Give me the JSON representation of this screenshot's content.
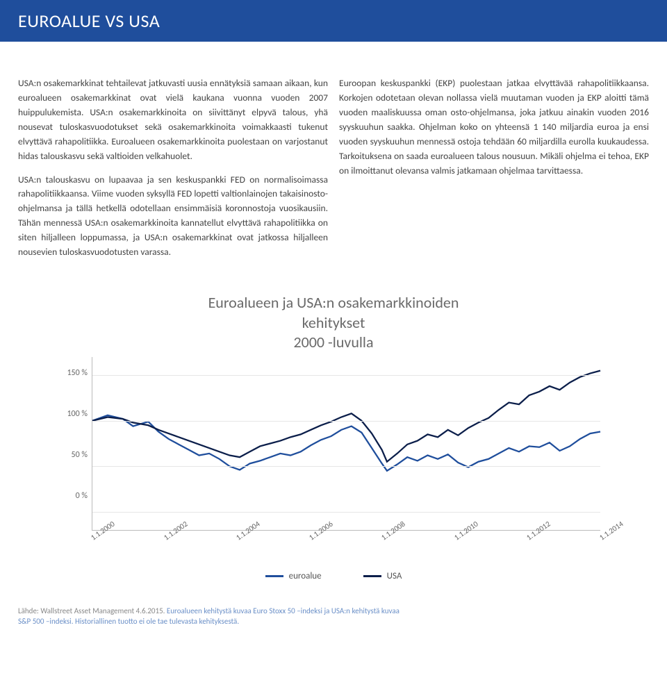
{
  "banner": {
    "title": "EUROALUE VS USA"
  },
  "col_left": {
    "p1": "USA:n osakemarkkinat tehtailevat jatkuvasti uusia ennätyksiä samaan aikaan, kun euroalueen osakemarkkinat ovat vielä kaukana vuonna vuoden 2007 huippulukemista. USA:n osakemarkkinoita on siivittänyt elpyvä talous, yhä nousevat tuloskasvuodotukset sekä osakemarkkinoita voimakkaasti tukenut elvyttävä rahapolitiikka. Euroalueen osakemarkkinoita puolestaan on varjostanut hidas talouskasvu sekä valtioiden velkahuolet.",
    "p2": "USA:n talouskasvu on lupaavaa ja sen keskuspankki FED on normalisoimassa rahapolitiikkaansa. Viime vuoden syksyllä FED lopetti valtionlainojen takaisinosto-ohjelmansa ja tällä hetkellä odotellaan ensimmäisiä koronnostoja vuosikausiin. Tähän mennessä USA:n osakemarkkinoita kannatellut elvyttävä rahapolitiikka on siten hiljalleen loppumassa, ja USA:n osakemarkkinat ovat jatkossa hiljalleen nousevien tuloskasvuodotusten varassa."
  },
  "col_right": {
    "p1": "Euroopan keskuspankki (EKP) puolestaan jatkaa elvyttävää rahapolitiikkaansa. Korkojen odotetaan olevan nollassa vielä muutaman vuoden ja EKP aloitti tämä vuoden maaliskuussa oman osto-ohjelmansa, joka jatkuu ainakin vuoden 2016 syyskuuhun saakka. Ohjelman koko on yhteensä 1 140 miljardia euroa ja ensi vuoden syyskuuhun mennessä ostoja tehdään 60 miljardilla eurolla kuukaudessa. Tarkoituksena on saada euroalueen talous nousuun. Mikäli ohjelma ei tehoa, EKP on ilmoittanut olevansa valmis jatkamaan ohjelmaa tarvittaessa."
  },
  "chart": {
    "title_line1": "Euroalueen ja USA:n osakemarkkinoiden",
    "title_line2": "kehitykset",
    "title_line3": "2000 -luvulla",
    "title_color": "#6a6a6a",
    "title_fontsize": 22,
    "ylim": [
      -20,
      170
    ],
    "y_ticks": [
      0,
      50,
      100,
      150
    ],
    "y_tick_labels": [
      "0 %",
      "50 %",
      "100 %",
      "150 %"
    ],
    "x_ticks_pos": [
      0.0,
      0.143,
      0.286,
      0.429,
      0.571,
      0.714,
      0.857,
      1.0
    ],
    "x_tick_labels": [
      "1.1.2000",
      "1.1.2002",
      "1.1.2004",
      "1.1.2006",
      "1.1.2008",
      "1.1.2010",
      "1.1.2012",
      "1.1.2014"
    ],
    "grid_color": "#e6e6e6",
    "axis_color": "#bbbbbb",
    "series": {
      "euroalue": {
        "label": "euroalue",
        "color": "#1f4e9c",
        "width": 1.6,
        "points": [
          [
            0.0,
            100
          ],
          [
            0.03,
            106
          ],
          [
            0.06,
            102
          ],
          [
            0.08,
            94
          ],
          [
            0.11,
            99
          ],
          [
            0.13,
            88
          ],
          [
            0.15,
            80
          ],
          [
            0.17,
            74
          ],
          [
            0.19,
            68
          ],
          [
            0.21,
            62
          ],
          [
            0.23,
            64
          ],
          [
            0.25,
            58
          ],
          [
            0.27,
            50
          ],
          [
            0.29,
            46
          ],
          [
            0.31,
            53
          ],
          [
            0.33,
            56
          ],
          [
            0.35,
            60
          ],
          [
            0.37,
            64
          ],
          [
            0.39,
            62
          ],
          [
            0.41,
            66
          ],
          [
            0.43,
            73
          ],
          [
            0.45,
            79
          ],
          [
            0.47,
            83
          ],
          [
            0.49,
            90
          ],
          [
            0.51,
            94
          ],
          [
            0.53,
            87
          ],
          [
            0.55,
            70
          ],
          [
            0.57,
            53
          ],
          [
            0.58,
            45
          ],
          [
            0.6,
            52
          ],
          [
            0.62,
            60
          ],
          [
            0.64,
            56
          ],
          [
            0.66,
            62
          ],
          [
            0.68,
            58
          ],
          [
            0.7,
            63
          ],
          [
            0.72,
            54
          ],
          [
            0.74,
            49
          ],
          [
            0.76,
            55
          ],
          [
            0.78,
            58
          ],
          [
            0.8,
            64
          ],
          [
            0.82,
            70
          ],
          [
            0.84,
            66
          ],
          [
            0.86,
            72
          ],
          [
            0.88,
            71
          ],
          [
            0.9,
            76
          ],
          [
            0.92,
            67
          ],
          [
            0.94,
            72
          ],
          [
            0.96,
            80
          ],
          [
            0.98,
            86
          ],
          [
            1.0,
            88
          ]
        ]
      },
      "usa": {
        "label": "USA",
        "color": "#0b1e4a",
        "width": 1.6,
        "points": [
          [
            0.0,
            100
          ],
          [
            0.03,
            104
          ],
          [
            0.06,
            102
          ],
          [
            0.08,
            98
          ],
          [
            0.11,
            95
          ],
          [
            0.13,
            90
          ],
          [
            0.15,
            86
          ],
          [
            0.17,
            82
          ],
          [
            0.19,
            78
          ],
          [
            0.21,
            74
          ],
          [
            0.23,
            70
          ],
          [
            0.25,
            66
          ],
          [
            0.27,
            62
          ],
          [
            0.29,
            60
          ],
          [
            0.31,
            66
          ],
          [
            0.33,
            72
          ],
          [
            0.35,
            75
          ],
          [
            0.37,
            78
          ],
          [
            0.39,
            82
          ],
          [
            0.41,
            85
          ],
          [
            0.43,
            90
          ],
          [
            0.45,
            95
          ],
          [
            0.47,
            99
          ],
          [
            0.49,
            104
          ],
          [
            0.51,
            108
          ],
          [
            0.53,
            100
          ],
          [
            0.55,
            86
          ],
          [
            0.57,
            68
          ],
          [
            0.58,
            55
          ],
          [
            0.6,
            64
          ],
          [
            0.62,
            74
          ],
          [
            0.64,
            78
          ],
          [
            0.66,
            85
          ],
          [
            0.68,
            82
          ],
          [
            0.7,
            90
          ],
          [
            0.72,
            84
          ],
          [
            0.74,
            92
          ],
          [
            0.76,
            98
          ],
          [
            0.78,
            103
          ],
          [
            0.8,
            112
          ],
          [
            0.82,
            120
          ],
          [
            0.84,
            118
          ],
          [
            0.86,
            128
          ],
          [
            0.88,
            132
          ],
          [
            0.9,
            138
          ],
          [
            0.92,
            134
          ],
          [
            0.94,
            142
          ],
          [
            0.96,
            148
          ],
          [
            0.98,
            152
          ],
          [
            1.0,
            155
          ]
        ]
      }
    },
    "legend": [
      {
        "key": "euroalue",
        "label": "euroalue",
        "color": "#1f4e9c"
      },
      {
        "key": "usa",
        "label": "USA",
        "color": "#0b1e4a"
      }
    ]
  },
  "footer": {
    "line1_pre": "Lähde: Wallstreet Asset Management 4.6.2015. ",
    "line1_src": "Euroalueen kehitystä kuvaa Euro Stoxx 50 –indeksi ja USA:n kehitystä kuvaa",
    "line2": "S&P 500 –indeksi. Historiallinen tuotto ei ole tae tulevasta kehityksestä."
  }
}
